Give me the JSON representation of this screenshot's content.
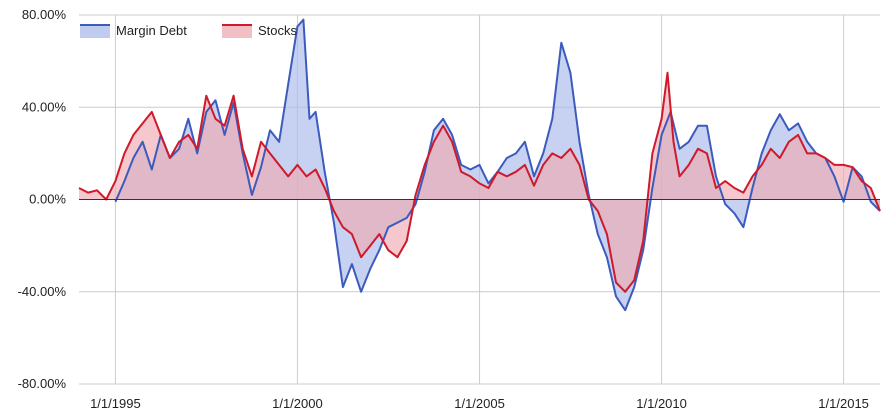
{
  "chart_data": {
    "type": "area",
    "title": "",
    "xlabel": "",
    "ylabel": "",
    "ylim": [
      -0.8,
      0.8
    ],
    "xlim": [
      "1994-01-01",
      "2016-01-01"
    ],
    "y_ticks": [
      {
        "value": 0.8,
        "label": "80.00%"
      },
      {
        "value": 0.4,
        "label": "40.00%"
      },
      {
        "value": 0.0,
        "label": "0.00%"
      },
      {
        "value": -0.4,
        "label": "-40.00%"
      },
      {
        "value": -0.8,
        "label": "-80.00%"
      }
    ],
    "x_ticks": [
      {
        "value": "1995-01-01",
        "label": "1/1/1995"
      },
      {
        "value": "2000-01-01",
        "label": "1/1/2000"
      },
      {
        "value": "2005-01-01",
        "label": "1/1/2005"
      },
      {
        "value": "2010-01-01",
        "label": "1/1/2010"
      },
      {
        "value": "2015-01-01",
        "label": "1/1/2015"
      }
    ],
    "grid": true,
    "legend": "top-left",
    "series": [
      {
        "name": "Margin Debt",
        "color": "#3c5bbd",
        "fill": "#a9b9e9",
        "points": [
          [
            "1995-01-01",
            -0.01
          ],
          [
            "1995-04-01",
            0.08
          ],
          [
            "1995-07-01",
            0.18
          ],
          [
            "1995-10-01",
            0.25
          ],
          [
            "1996-01-01",
            0.13
          ],
          [
            "1996-04-01",
            0.28
          ],
          [
            "1996-07-01",
            0.18
          ],
          [
            "1996-10-01",
            0.22
          ],
          [
            "1997-01-01",
            0.35
          ],
          [
            "1997-04-01",
            0.2
          ],
          [
            "1997-07-01",
            0.38
          ],
          [
            "1997-10-01",
            0.43
          ],
          [
            "1998-01-01",
            0.28
          ],
          [
            "1998-04-01",
            0.42
          ],
          [
            "1998-07-01",
            0.2
          ],
          [
            "1998-10-01",
            0.02
          ],
          [
            "1999-01-01",
            0.14
          ],
          [
            "1999-04-01",
            0.3
          ],
          [
            "1999-07-01",
            0.25
          ],
          [
            "1999-10-01",
            0.5
          ],
          [
            "2000-01-01",
            0.75
          ],
          [
            "2000-03-01",
            0.78
          ],
          [
            "2000-05-01",
            0.35
          ],
          [
            "2000-07-01",
            0.38
          ],
          [
            "2000-10-01",
            0.12
          ],
          [
            "2001-01-01",
            -0.1
          ],
          [
            "2001-04-01",
            -0.38
          ],
          [
            "2001-07-01",
            -0.28
          ],
          [
            "2001-10-01",
            -0.4
          ],
          [
            "2002-01-01",
            -0.3
          ],
          [
            "2002-04-01",
            -0.22
          ],
          [
            "2002-07-01",
            -0.12
          ],
          [
            "2002-10-01",
            -0.1
          ],
          [
            "2003-01-01",
            -0.08
          ],
          [
            "2003-04-01",
            -0.02
          ],
          [
            "2003-07-01",
            0.12
          ],
          [
            "2003-10-01",
            0.3
          ],
          [
            "2004-01-01",
            0.35
          ],
          [
            "2004-04-01",
            0.28
          ],
          [
            "2004-07-01",
            0.15
          ],
          [
            "2004-10-01",
            0.13
          ],
          [
            "2005-01-01",
            0.15
          ],
          [
            "2005-04-01",
            0.07
          ],
          [
            "2005-07-01",
            0.12
          ],
          [
            "2005-10-01",
            0.18
          ],
          [
            "2006-01-01",
            0.2
          ],
          [
            "2006-04-01",
            0.25
          ],
          [
            "2006-07-01",
            0.1
          ],
          [
            "2006-10-01",
            0.2
          ],
          [
            "2007-01-01",
            0.35
          ],
          [
            "2007-04-01",
            0.68
          ],
          [
            "2007-07-01",
            0.55
          ],
          [
            "2007-10-01",
            0.25
          ],
          [
            "2008-01-01",
            0.02
          ],
          [
            "2008-04-01",
            -0.15
          ],
          [
            "2008-07-01",
            -0.25
          ],
          [
            "2008-10-01",
            -0.42
          ],
          [
            "2009-01-01",
            -0.48
          ],
          [
            "2009-04-01",
            -0.38
          ],
          [
            "2009-07-01",
            -0.22
          ],
          [
            "2009-10-01",
            0.05
          ],
          [
            "2010-01-01",
            0.28
          ],
          [
            "2010-04-01",
            0.38
          ],
          [
            "2010-07-01",
            0.22
          ],
          [
            "2010-10-01",
            0.25
          ],
          [
            "2011-01-01",
            0.32
          ],
          [
            "2011-04-01",
            0.32
          ],
          [
            "2011-07-01",
            0.1
          ],
          [
            "2011-10-01",
            -0.02
          ],
          [
            "2012-01-01",
            -0.06
          ],
          [
            "2012-04-01",
            -0.12
          ],
          [
            "2012-07-01",
            0.05
          ],
          [
            "2012-10-01",
            0.2
          ],
          [
            "2013-01-01",
            0.3
          ],
          [
            "2013-04-01",
            0.37
          ],
          [
            "2013-07-01",
            0.3
          ],
          [
            "2013-10-01",
            0.33
          ],
          [
            "2014-01-01",
            0.25
          ],
          [
            "2014-04-01",
            0.2
          ],
          [
            "2014-07-01",
            0.18
          ],
          [
            "2014-10-01",
            0.1
          ],
          [
            "2015-01-01",
            -0.01
          ],
          [
            "2015-04-01",
            0.14
          ],
          [
            "2015-07-01",
            0.1
          ],
          [
            "2015-10-01",
            -0.01
          ],
          [
            "2016-01-01",
            -0.05
          ]
        ]
      },
      {
        "name": "Stocks",
        "color": "#d0192b",
        "fill": "#eeaab2",
        "points": [
          [
            "1994-01-01",
            0.05
          ],
          [
            "1994-04-01",
            0.03
          ],
          [
            "1994-07-01",
            0.04
          ],
          [
            "1994-10-01",
            0.0
          ],
          [
            "1995-01-01",
            0.08
          ],
          [
            "1995-04-01",
            0.2
          ],
          [
            "1995-07-01",
            0.28
          ],
          [
            "1995-10-01",
            0.33
          ],
          [
            "1996-01-01",
            0.38
          ],
          [
            "1996-04-01",
            0.28
          ],
          [
            "1996-07-01",
            0.18
          ],
          [
            "1996-10-01",
            0.25
          ],
          [
            "1997-01-01",
            0.28
          ],
          [
            "1997-04-01",
            0.22
          ],
          [
            "1997-07-01",
            0.45
          ],
          [
            "1997-10-01",
            0.35
          ],
          [
            "1998-01-01",
            0.32
          ],
          [
            "1998-04-01",
            0.45
          ],
          [
            "1998-07-01",
            0.22
          ],
          [
            "1998-10-01",
            0.1
          ],
          [
            "1999-01-01",
            0.25
          ],
          [
            "1999-04-01",
            0.2
          ],
          [
            "1999-07-01",
            0.15
          ],
          [
            "1999-10-01",
            0.1
          ],
          [
            "2000-01-01",
            0.15
          ],
          [
            "2000-04-01",
            0.1
          ],
          [
            "2000-07-01",
            0.13
          ],
          [
            "2000-10-01",
            0.05
          ],
          [
            "2001-01-01",
            -0.05
          ],
          [
            "2001-04-01",
            -0.12
          ],
          [
            "2001-07-01",
            -0.15
          ],
          [
            "2001-10-01",
            -0.25
          ],
          [
            "2002-01-01",
            -0.2
          ],
          [
            "2002-04-01",
            -0.15
          ],
          [
            "2002-07-01",
            -0.22
          ],
          [
            "2002-10-01",
            -0.25
          ],
          [
            "2003-01-01",
            -0.18
          ],
          [
            "2003-04-01",
            0.02
          ],
          [
            "2003-07-01",
            0.15
          ],
          [
            "2003-10-01",
            0.25
          ],
          [
            "2004-01-01",
            0.32
          ],
          [
            "2004-04-01",
            0.25
          ],
          [
            "2004-07-01",
            0.12
          ],
          [
            "2004-10-01",
            0.1
          ],
          [
            "2005-01-01",
            0.07
          ],
          [
            "2005-04-01",
            0.05
          ],
          [
            "2005-07-01",
            0.12
          ],
          [
            "2005-10-01",
            0.1
          ],
          [
            "2006-01-01",
            0.12
          ],
          [
            "2006-04-01",
            0.15
          ],
          [
            "2006-07-01",
            0.06
          ],
          [
            "2006-10-01",
            0.15
          ],
          [
            "2007-01-01",
            0.2
          ],
          [
            "2007-04-01",
            0.18
          ],
          [
            "2007-07-01",
            0.22
          ],
          [
            "2007-10-01",
            0.15
          ],
          [
            "2008-01-01",
            0.0
          ],
          [
            "2008-04-01",
            -0.05
          ],
          [
            "2008-07-01",
            -0.15
          ],
          [
            "2008-10-01",
            -0.36
          ],
          [
            "2009-01-01",
            -0.4
          ],
          [
            "2009-04-01",
            -0.35
          ],
          [
            "2009-07-01",
            -0.18
          ],
          [
            "2009-10-01",
            0.2
          ],
          [
            "2010-01-01",
            0.35
          ],
          [
            "2010-03-01",
            0.55
          ],
          [
            "2010-05-01",
            0.25
          ],
          [
            "2010-07-01",
            0.1
          ],
          [
            "2010-10-01",
            0.15
          ],
          [
            "2011-01-01",
            0.22
          ],
          [
            "2011-04-01",
            0.2
          ],
          [
            "2011-07-01",
            0.05
          ],
          [
            "2011-10-01",
            0.08
          ],
          [
            "2012-01-01",
            0.05
          ],
          [
            "2012-04-01",
            0.03
          ],
          [
            "2012-07-01",
            0.1
          ],
          [
            "2012-10-01",
            0.15
          ],
          [
            "2013-01-01",
            0.22
          ],
          [
            "2013-04-01",
            0.18
          ],
          [
            "2013-07-01",
            0.25
          ],
          [
            "2013-10-01",
            0.28
          ],
          [
            "2014-01-01",
            0.2
          ],
          [
            "2014-04-01",
            0.2
          ],
          [
            "2014-07-01",
            0.18
          ],
          [
            "2014-10-01",
            0.15
          ],
          [
            "2015-01-01",
            0.15
          ],
          [
            "2015-04-01",
            0.14
          ],
          [
            "2015-07-01",
            0.08
          ],
          [
            "2015-10-01",
            0.05
          ],
          [
            "2016-01-01",
            -0.05
          ]
        ]
      }
    ]
  }
}
